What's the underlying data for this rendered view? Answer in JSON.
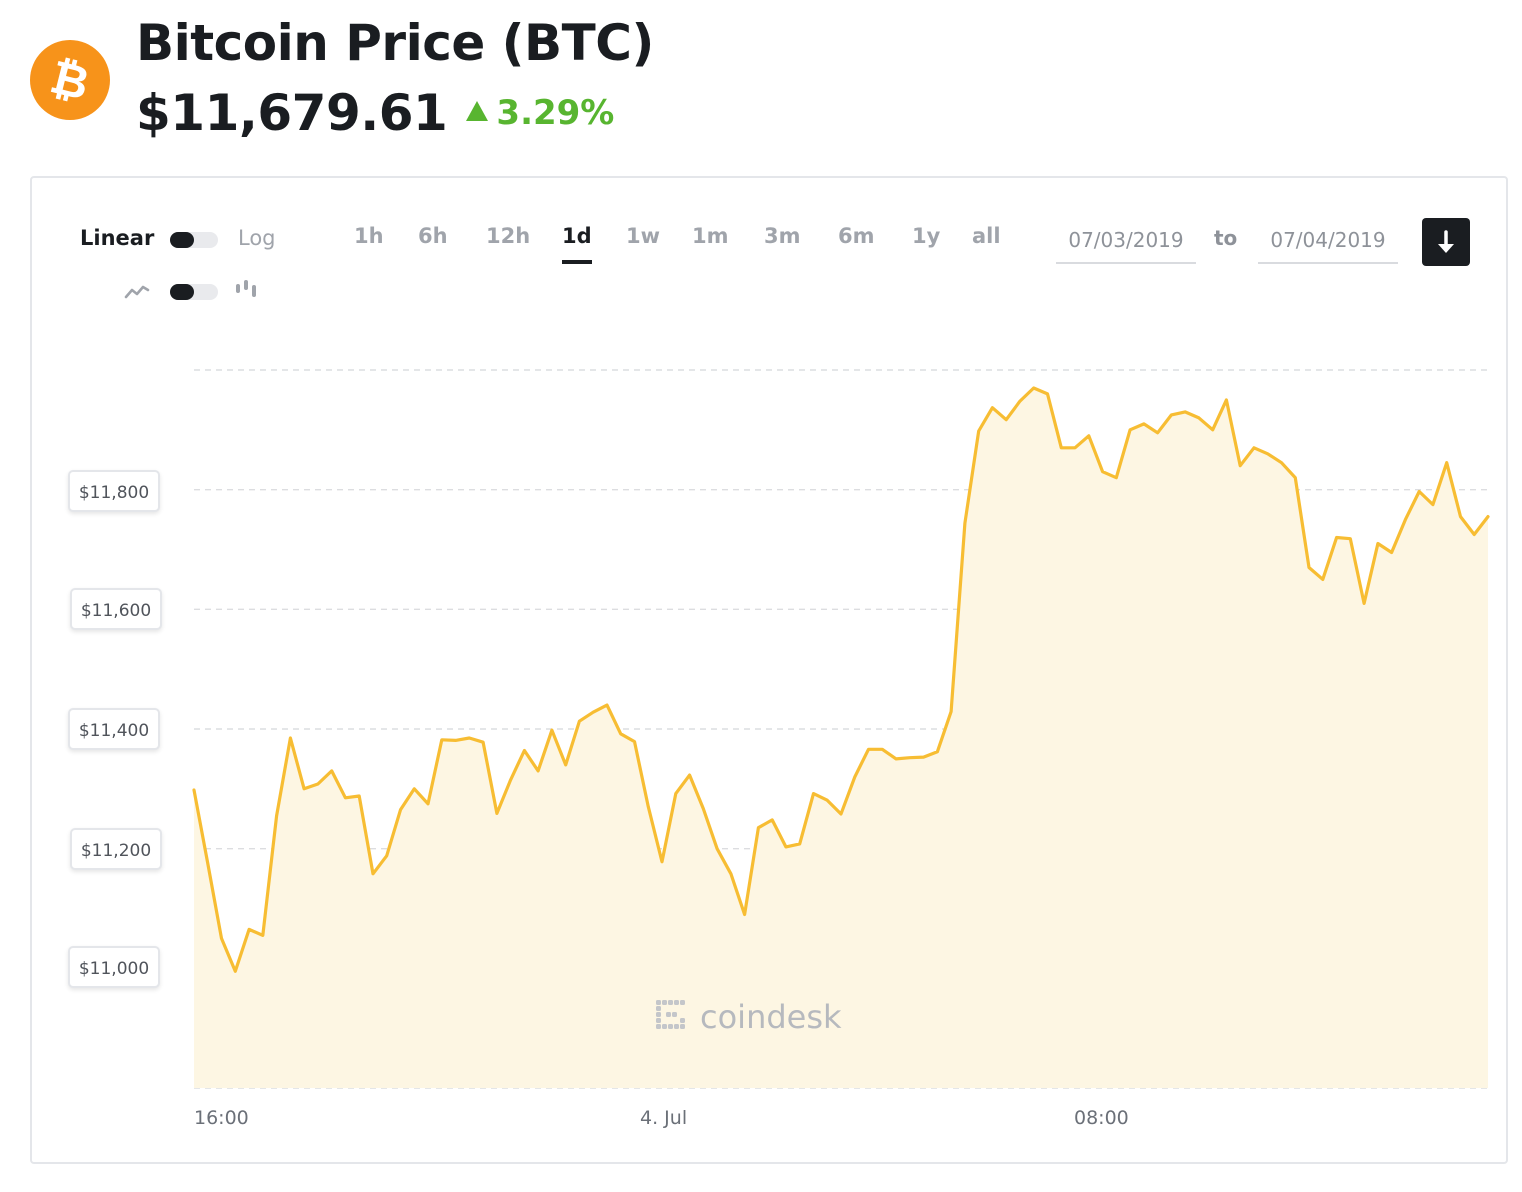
{
  "header": {
    "title": "Bitcoin Price (BTC)",
    "price": "$11,679.61",
    "change": "3.29%",
    "logo_icon": "bitcoin-icon",
    "colors": {
      "brand": "#f7931a",
      "positive": "#58b530"
    }
  },
  "controls": {
    "scale_linear": "Linear",
    "scale_log": "Log",
    "ranges": [
      "1h",
      "6h",
      "12h",
      "1d",
      "1w",
      "1m",
      "3m",
      "6m",
      "1y",
      "all"
    ],
    "active_range": "1d",
    "date_from": "07/03/2019",
    "date_to": "07/04/2019",
    "to_label": "to",
    "chart_type_icons": [
      "line-chart-icon",
      "candlestick-icon"
    ],
    "download_icon": "download-icon"
  },
  "watermark": "coindesk",
  "chart_data": {
    "type": "area",
    "title": "",
    "xlabel": "",
    "ylabel": "",
    "x_ticks": [
      "16:00",
      "4. Jul",
      "08:00"
    ],
    "y_ticks": [
      "$11,000",
      "$11,200",
      "$11,400",
      "$11,600",
      "$11,800"
    ],
    "ylim": [
      10800,
      12000
    ],
    "grid": true,
    "line_color": "#f7bd33",
    "fill_color": "#fdf6e3",
    "series": [
      {
        "values": [
          11298,
          11175,
          11050,
          10995,
          11065,
          11055,
          11255,
          11385,
          11300,
          11308,
          11330,
          11285,
          11288,
          11158,
          11188,
          11265,
          11300,
          11275,
          11382,
          11381,
          11385,
          11378,
          11259,
          11315,
          11364,
          11330,
          11398,
          11340,
          11413,
          11428,
          11440,
          11392,
          11379,
          11270,
          11178,
          11292,
          11323,
          11267,
          11200,
          11158,
          11090,
          11235,
          11248,
          11203,
          11208,
          11292,
          11281,
          11258,
          11320,
          11366,
          11366,
          11350,
          11352,
          11353,
          11362,
          11429,
          11744,
          11898,
          11937,
          11917,
          11948,
          11970,
          11960,
          11870,
          11870,
          11890,
          11830,
          11820,
          11900,
          11910,
          11895,
          11925,
          11930,
          11920,
          11900,
          11950,
          11840,
          11870,
          11860,
          11845,
          11820,
          11670,
          11650,
          11720,
          11718,
          11610,
          11710,
          11695,
          11750,
          11797,
          11775,
          11845,
          11755,
          11725,
          11755
        ]
      }
    ]
  }
}
